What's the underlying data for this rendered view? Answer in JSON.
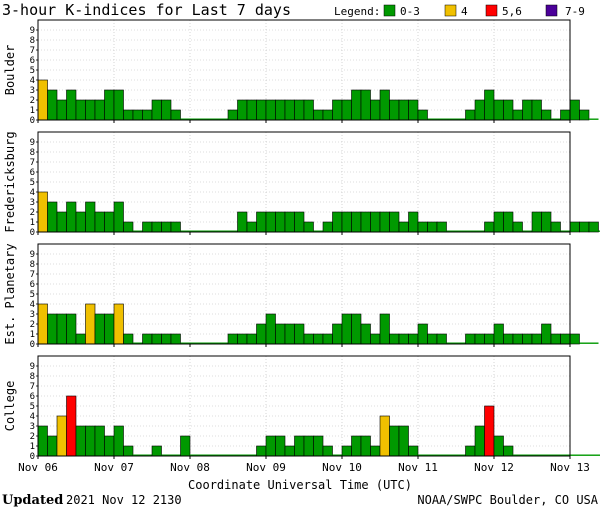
{
  "title": "3-hour K-indices for Last 7 days",
  "legend": {
    "label": "Legend:",
    "items": [
      {
        "label": "0-3",
        "color": "#009900"
      },
      {
        "label": "4",
        "color": "#f0c000"
      },
      {
        "label": "5,6",
        "color": "#ff0000"
      },
      {
        "label": "7-9",
        "color": "#4b0099"
      }
    ]
  },
  "colors": {
    "k0_3": "#009900",
    "k4": "#f0c000",
    "k5_6": "#ff0000",
    "k7_9": "#4b0099"
  },
  "footer": {
    "updated_label": "Updated",
    "updated_value": "2021 Nov 12 2130",
    "source": "NOAA/SWPC Boulder, CO USA"
  },
  "chart_data": {
    "type": "bar",
    "x_label": "Coordinate Universal Time (UTC)",
    "x_ticks": [
      "Nov 06",
      "Nov 07",
      "Nov 08",
      "Nov 09",
      "Nov 10",
      "Nov 11",
      "Nov 12",
      "Nov 13"
    ],
    "y_ticks": [
      "0",
      "1",
      "2",
      "3",
      "4",
      "5",
      "6",
      "7",
      "8",
      "9"
    ],
    "ylim": [
      0,
      9
    ],
    "bars_per_day": 8,
    "grid": true,
    "panels": [
      {
        "name": "Boulder",
        "values": [
          4,
          3,
          2,
          3,
          2,
          2,
          2,
          3,
          3,
          1,
          1,
          1,
          2,
          2,
          1,
          0,
          0,
          0,
          0,
          0,
          1,
          2,
          2,
          2,
          2,
          2,
          2,
          2,
          2,
          1,
          1,
          2,
          2,
          3,
          3,
          2,
          3,
          2,
          2,
          2,
          1,
          0,
          0,
          0,
          0,
          1,
          2,
          3,
          2,
          2,
          1,
          2,
          2,
          1,
          0,
          1,
          2,
          1,
          0
        ]
      },
      {
        "name": "Fredericksburg",
        "values": [
          4,
          3,
          2,
          3,
          2,
          3,
          2,
          2,
          3,
          1,
          0,
          1,
          1,
          1,
          1,
          0,
          0,
          0,
          0,
          0,
          0,
          2,
          1,
          2,
          2,
          2,
          2,
          2,
          1,
          0,
          1,
          2,
          2,
          2,
          2,
          2,
          2,
          2,
          1,
          2,
          1,
          1,
          1,
          0,
          0,
          0,
          0,
          1,
          2,
          2,
          1,
          0,
          2,
          2,
          1,
          0,
          1,
          1,
          1,
          0
        ]
      },
      {
        "name": "Est. Planetary",
        "values": [
          4,
          3,
          3,
          3,
          1,
          4,
          3,
          3,
          4,
          1,
          0,
          1,
          1,
          1,
          1,
          0,
          0,
          0,
          0,
          0,
          1,
          1,
          1,
          2,
          3,
          2,
          2,
          2,
          1,
          1,
          1,
          2,
          3,
          3,
          2,
          1,
          3,
          1,
          1,
          1,
          2,
          1,
          1,
          0,
          0,
          1,
          1,
          1,
          2,
          1,
          1,
          1,
          1,
          2,
          1,
          1,
          1,
          0,
          0
        ]
      },
      {
        "name": "College",
        "values": [
          3,
          2,
          4,
          6,
          3,
          3,
          3,
          2,
          3,
          1,
          0,
          0,
          1,
          0,
          0,
          2,
          0,
          0,
          0,
          0,
          0,
          0,
          0,
          1,
          2,
          2,
          1,
          2,
          2,
          2,
          1,
          0,
          1,
          2,
          2,
          1,
          4,
          3,
          3,
          1,
          0,
          0,
          0,
          0,
          0,
          1,
          3,
          5,
          2,
          1,
          0,
          0,
          0,
          0,
          0,
          0,
          0,
          0,
          0,
          0
        ]
      }
    ]
  }
}
